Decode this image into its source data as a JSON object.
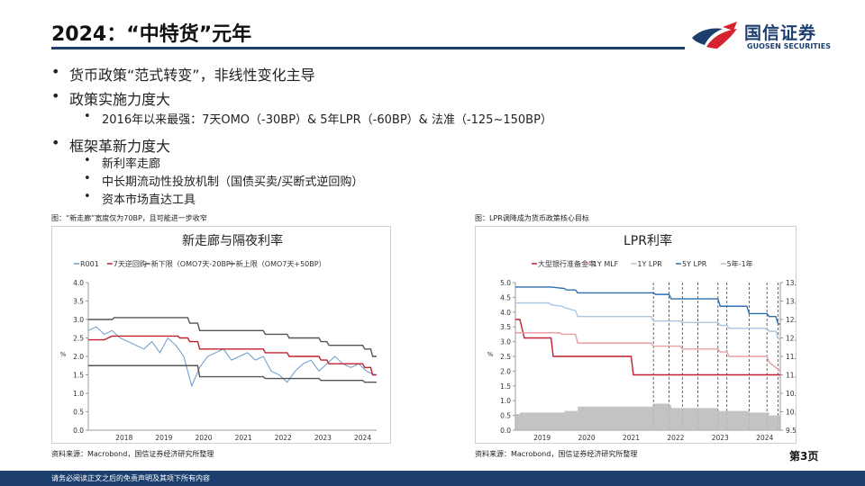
{
  "header": {
    "title": "2024：“中特货”元年",
    "logo_cn": "国信证券",
    "logo_en": "GUOSEN SECURITIES"
  },
  "bullets": [
    {
      "text": "货币政策“范式转变”，非线性变化主导",
      "children": []
    },
    {
      "text": "政策实施力度大",
      "children": [
        "2016年以来最强：7天OMO（-30BP）& 5年LPR（-60BP）& 法准（-125~150BP）"
      ]
    },
    {
      "text": "框架革新力度大",
      "children": [
        "新利率走廊",
        "中长期流动性投放机制（国债买卖/买断式逆回购）",
        "资本市场直达工具"
      ]
    }
  ],
  "left_figure": {
    "caption": "图：“新走廊”宽度仅为70BP，且可能进一步收窄",
    "source": "资料来源：Macrobond，国信证券经济研究所整理"
  },
  "right_figure": {
    "caption": "图：LPR调降成为货币政策核心目标",
    "source": "资料来源：Macrobond，国信证券经济研究所整理"
  },
  "page_number": "第3页",
  "footer": "请务必阅读正文之后的免责声明及其项下所有内容",
  "chart_data": [
    {
      "type": "line",
      "title": "新走廊与隔夜利率",
      "ylabel": "%",
      "ylim": [
        0,
        4.0
      ],
      "yticks": [
        "0.0",
        "0.5",
        "1.0",
        "1.5",
        "2.0",
        "2.5",
        "3.0",
        "3.5",
        "4.0"
      ],
      "xticks": [
        "2018",
        "2019",
        "2020",
        "2021",
        "2022",
        "2023",
        "2024"
      ],
      "xlim": [
        2017.6,
        2024.85
      ],
      "series": [
        {
          "name": "R001",
          "color": "#6b9ac9",
          "x": [
            2017.6,
            2017.8,
            2018.0,
            2018.2,
            2018.4,
            2018.6,
            2018.8,
            2019.0,
            2019.2,
            2019.4,
            2019.6,
            2019.8,
            2020.0,
            2020.2,
            2020.4,
            2020.6,
            2020.8,
            2021.0,
            2021.2,
            2021.4,
            2021.6,
            2021.8,
            2022.0,
            2022.2,
            2022.4,
            2022.6,
            2022.8,
            2023.0,
            2023.2,
            2023.4,
            2023.6,
            2023.8,
            2024.0,
            2024.2,
            2024.4,
            2024.6,
            2024.8
          ],
          "y": [
            2.7,
            2.8,
            2.6,
            2.7,
            2.5,
            2.4,
            2.3,
            2.2,
            2.4,
            2.1,
            2.5,
            2.3,
            2.0,
            1.2,
            1.7,
            2.0,
            2.1,
            2.2,
            1.9,
            2.0,
            2.1,
            1.9,
            2.0,
            1.6,
            1.5,
            1.3,
            1.6,
            1.8,
            1.9,
            1.6,
            1.8,
            2.0,
            1.8,
            1.7,
            1.8,
            1.6,
            1.5
          ]
        },
        {
          "name": "7天逆回购",
          "color": "#c0202f",
          "x": [
            2017.6,
            2018.0,
            2018.2,
            2019.0,
            2019.85,
            2019.9,
            2020.1,
            2020.15,
            2020.35,
            2020.4,
            2022.0,
            2022.05,
            2022.6,
            2022.65,
            2023.4,
            2023.45,
            2023.6,
            2023.65,
            2024.5,
            2024.55,
            2024.7,
            2024.75,
            2024.85
          ],
          "y": [
            2.45,
            2.45,
            2.55,
            2.55,
            2.55,
            2.5,
            2.5,
            2.4,
            2.4,
            2.2,
            2.2,
            2.1,
            2.1,
            2.0,
            2.0,
            1.9,
            1.9,
            1.8,
            1.8,
            1.7,
            1.7,
            1.5,
            1.5
          ]
        },
        {
          "name": "新下限（OMO7天-20BP）",
          "color": "#555555",
          "x": [
            2017.6,
            2020.35,
            2020.4,
            2022.0,
            2022.05,
            2023.4,
            2023.45,
            2024.5,
            2024.55,
            2024.7,
            2024.75,
            2024.85
          ],
          "y": [
            1.75,
            1.75,
            1.45,
            1.45,
            1.4,
            1.4,
            1.35,
            1.35,
            1.3,
            1.3,
            1.3,
            1.3
          ]
        },
        {
          "name": "新上限（OMO7天+50BP）",
          "color": "#555555",
          "x": [
            2017.6,
            2018.2,
            2018.25,
            2020.1,
            2020.15,
            2020.35,
            2020.4,
            2022.0,
            2022.05,
            2022.6,
            2022.65,
            2023.4,
            2023.45,
            2023.6,
            2023.65,
            2024.5,
            2024.55,
            2024.7,
            2024.75,
            2024.85
          ],
          "y": [
            3.0,
            3.0,
            3.05,
            3.05,
            2.9,
            2.9,
            2.7,
            2.7,
            2.6,
            2.6,
            2.5,
            2.5,
            2.4,
            2.4,
            2.3,
            2.3,
            2.2,
            2.2,
            2.0,
            2.0
          ]
        }
      ]
    },
    {
      "type": "line",
      "title": "LPR利率",
      "ylabel": "%",
      "ylim": [
        0,
        5.0
      ],
      "y2lim": [
        9.5,
        13.5
      ],
      "yticks": [
        "0.0",
        "0.5",
        "1.0",
        "1.5",
        "2.0",
        "2.5",
        "3.0",
        "3.5",
        "4.0",
        "4.5",
        "5.0"
      ],
      "y2ticks": [
        "9.5",
        "10.0",
        "10.5",
        "11.0",
        "11.5",
        "12.0",
        "12.5",
        "13.0",
        "13.5"
      ],
      "xticks": [
        "2019",
        "2020",
        "2021",
        "2022",
        "2023",
        "2024"
      ],
      "xlim": [
        2018.9,
        2024.85
      ],
      "series": [
        {
          "name": "大型银行准备金率",
          "axis": "right",
          "color": "#c0202f",
          "x": [
            2018.9,
            2019.0,
            2019.1,
            2019.7,
            2019.75,
            2020.0,
            2020.05,
            2021.5,
            2021.55,
            2021.95,
            2022.0,
            2022.3,
            2022.35,
            2022.9,
            2022.95,
            2023.2,
            2023.25,
            2023.7,
            2023.75,
            2024.1,
            2024.15,
            2024.7,
            2024.75,
            2024.85
          ],
          "y": [
            12.5,
            12.5,
            12.0,
            12.0,
            11.5,
            11.5,
            11.5,
            11.5,
            11.0,
            11.0,
            11.0,
            11.0,
            11.0,
            11.0,
            11.0,
            11.0,
            11.0,
            11.0,
            11.0,
            11.0,
            11.0,
            11.0,
            11.0,
            11.0
          ]
        },
        {
          "name": "1Y MLF",
          "color": "#e8a0a0",
          "x": [
            2018.9,
            2019.9,
            2019.95,
            2020.25,
            2020.3,
            2021.95,
            2022.0,
            2022.6,
            2022.65,
            2023.45,
            2023.5,
            2023.65,
            2023.7,
            2024.55,
            2024.6,
            2024.85
          ],
          "y": [
            3.3,
            3.3,
            3.25,
            3.25,
            2.95,
            2.95,
            2.85,
            2.85,
            2.75,
            2.75,
            2.65,
            2.65,
            2.5,
            2.5,
            2.3,
            2.0
          ]
        },
        {
          "name": "1Y LPR",
          "color": "#a9c6e2",
          "x": [
            2018.9,
            2019.65,
            2019.7,
            2019.95,
            2020.0,
            2020.25,
            2020.3,
            2021.95,
            2022.0,
            2022.6,
            2022.65,
            2023.45,
            2023.5,
            2023.65,
            2023.7,
            2024.55,
            2024.6,
            2024.75,
            2024.8,
            2024.85
          ],
          "y": [
            4.31,
            4.31,
            4.25,
            4.2,
            4.15,
            4.05,
            3.85,
            3.85,
            3.7,
            3.7,
            3.65,
            3.65,
            3.55,
            3.55,
            3.45,
            3.45,
            3.35,
            3.35,
            3.1,
            3.1
          ]
        },
        {
          "name": "5Y LPR",
          "color": "#2f6fae",
          "x": [
            2018.9,
            2019.65,
            2019.7,
            2020.0,
            2020.05,
            2020.25,
            2020.3,
            2022.0,
            2022.05,
            2022.35,
            2022.4,
            2023.45,
            2023.5,
            2024.1,
            2024.15,
            2024.55,
            2024.6,
            2024.75,
            2024.8,
            2024.85
          ],
          "y": [
            4.85,
            4.85,
            4.85,
            4.8,
            4.75,
            4.75,
            4.65,
            4.65,
            4.6,
            4.6,
            4.45,
            4.45,
            4.2,
            4.2,
            3.95,
            3.95,
            3.85,
            3.85,
            3.6,
            3.6
          ]
        },
        {
          "name": "5年-1年",
          "color": "#bdbdbd",
          "kind": "area",
          "x": [
            2018.9,
            2019.0,
            2019.7,
            2020.0,
            2020.3,
            2022.0,
            2022.35,
            2022.4,
            2023.45,
            2024.15,
            2024.6,
            2024.85
          ],
          "y": [
            0.55,
            0.6,
            0.6,
            0.65,
            0.8,
            0.9,
            0.85,
            0.75,
            0.65,
            0.6,
            0.5,
            0.5
          ]
        }
      ],
      "policy_dates": [
        2022.0,
        2022.35,
        2022.65,
        2023.0,
        2023.45,
        2023.65,
        2024.15,
        2024.55,
        2024.8
      ]
    }
  ]
}
